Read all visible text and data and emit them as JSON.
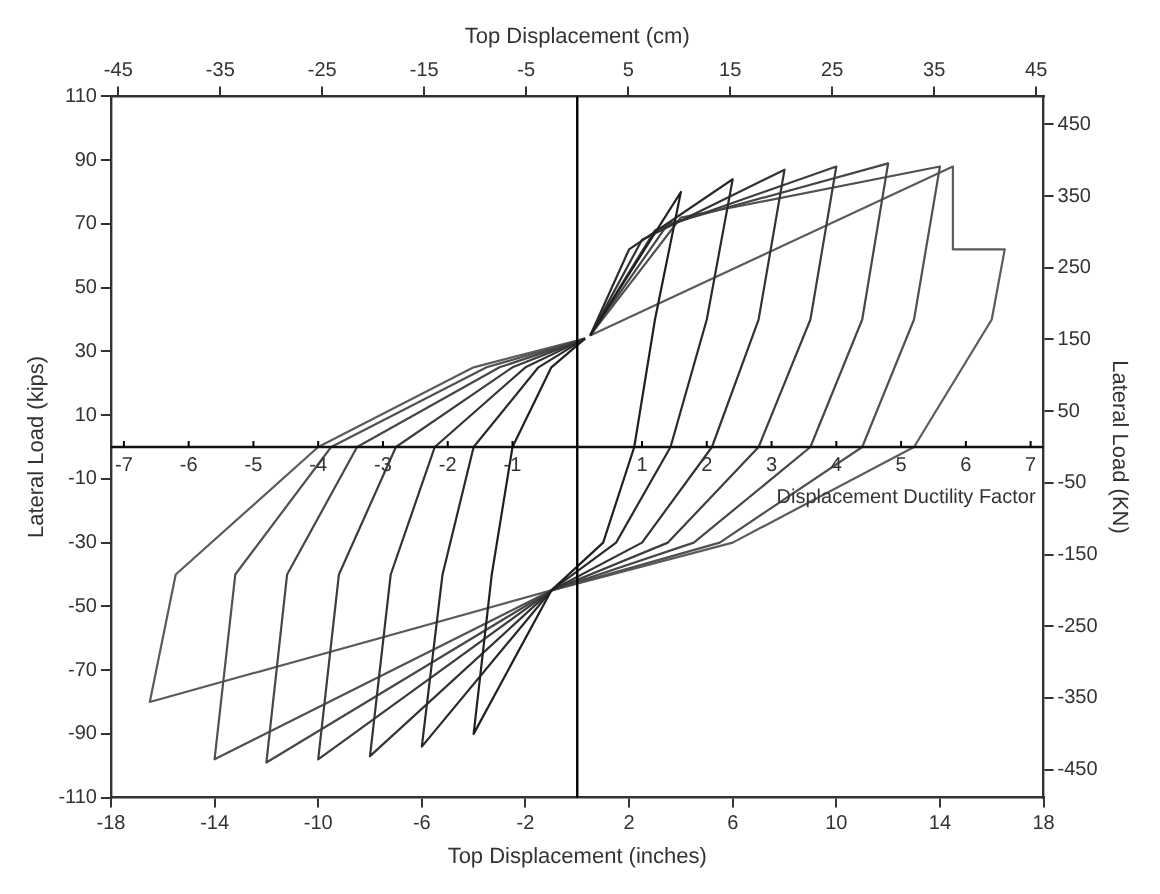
{
  "chart_data": {
    "type": "line",
    "xlabel": "Top Displacement (inches)",
    "x2label": "Top Displacement (cm)",
    "ylabel": "Lateral Load (kips)",
    "y2label": "Lateral Load (KN)",
    "xlim": [
      -18,
      18
    ],
    "xticks": [
      -18,
      -14,
      -10,
      -6,
      -2,
      2,
      6,
      10,
      14,
      18
    ],
    "annotations": [
      "Displacement Ductility Factor",
      "-7",
      "-6",
      "-5",
      "-4",
      "-3",
      "-2",
      "-1",
      "1",
      "2",
      "3",
      "4",
      "5",
      "6",
      "7"
    ],
    "x2lim": [
      -45.72,
      45.72
    ],
    "x2ticks": [
      -45,
      -35,
      -25,
      -15,
      -5,
      5,
      15,
      25,
      35,
      45
    ],
    "ylim": [
      -110,
      110
    ],
    "yticks": [
      -110,
      -90,
      -70,
      -50,
      -30,
      -10,
      10,
      30,
      50,
      70,
      90,
      110
    ],
    "y2lim": [
      -489,
      489
    ],
    "y2ticks": [
      -450,
      -350,
      -250,
      -150,
      -50,
      50,
      150,
      250,
      350,
      450
    ],
    "ref_lines": [
      {
        "axis": "x",
        "value": 0,
        "color": "#000000"
      },
      {
        "axis": "y",
        "value": 0,
        "color": "#111111"
      }
    ],
    "legend": false,
    "marker": "none",
    "line_style": "solid",
    "series": [
      {
        "color": "#202020",
        "x": [
          0.5,
          4,
          3,
          2.2,
          1,
          -1,
          -4,
          -3.3,
          -2.5,
          -1,
          0.3
        ],
        "values": [
          35,
          80,
          40,
          0,
          -30,
          -45,
          -90,
          -40,
          0,
          25,
          34
        ]
      },
      {
        "color": "#2a2a2a",
        "x": [
          0.5,
          2,
          6,
          5,
          3.6,
          1.5,
          -1,
          -6,
          -5.2,
          -4,
          -1.5,
          0.3
        ],
        "values": [
          35,
          62,
          84,
          40,
          0,
          -30,
          -45,
          -94,
          -40,
          0,
          25,
          34
        ]
      },
      {
        "color": "#333333",
        "x": [
          0.5,
          2.5,
          8,
          7,
          5.2,
          2.5,
          -1,
          -8,
          -7.2,
          -5.5,
          -2,
          0.3
        ],
        "values": [
          35,
          65,
          87,
          40,
          0,
          -30,
          -45,
          -97,
          -40,
          0,
          25,
          34
        ]
      },
      {
        "color": "#3d3d3d",
        "x": [
          0.5,
          3,
          10,
          9,
          7,
          3.5,
          -1,
          -10,
          -9.2,
          -7,
          -2.5,
          0.3
        ],
        "values": [
          35,
          68,
          88,
          40,
          0,
          -30,
          -45,
          -98,
          -40,
          0,
          25,
          34
        ]
      },
      {
        "color": "#474747",
        "x": [
          0.5,
          3.5,
          12,
          11,
          9,
          4.5,
          -1,
          -12,
          -11.2,
          -8.5,
          -3,
          0.3
        ],
        "values": [
          35,
          70,
          89,
          40,
          0,
          -30,
          -45,
          -99,
          -40,
          0,
          25,
          34
        ]
      },
      {
        "color": "#515151",
        "x": [
          0.5,
          4,
          14,
          13,
          11,
          5.5,
          -1,
          -14,
          -13.2,
          -9.5,
          -3.5,
          0.3
        ],
        "values": [
          35,
          72,
          88,
          40,
          0,
          -30,
          -45,
          -98,
          -40,
          0,
          25,
          34
        ]
      },
      {
        "color": "#5b5b5b",
        "x": [
          0.5,
          14.5,
          14.5,
          16.5,
          16,
          13,
          6,
          -1,
          -16.5,
          -15.5,
          -10,
          -4,
          0.3
        ],
        "values": [
          35,
          88,
          62,
          62,
          40,
          0,
          -30,
          -45,
          -80,
          -40,
          0,
          25,
          34
        ]
      }
    ]
  }
}
